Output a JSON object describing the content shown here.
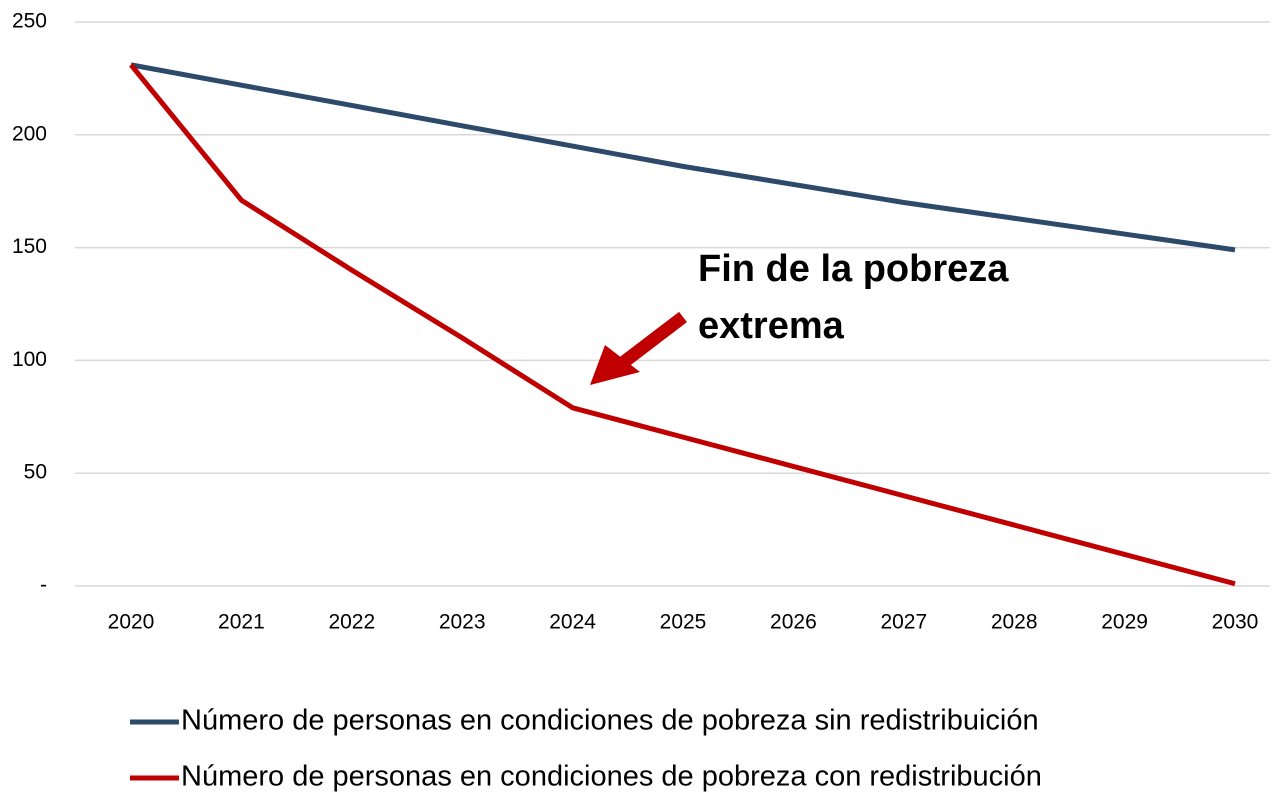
{
  "chart_data": {
    "type": "line",
    "categories": [
      "2020",
      "2021",
      "2022",
      "2023",
      "2024",
      "2025",
      "2026",
      "2027",
      "2028",
      "2029",
      "2030"
    ],
    "series": [
      {
        "name": "Número de personas en condiciones de pobreza sin redistribuición",
        "color": "#2e4a6b",
        "values": [
          231,
          222,
          213,
          204,
          195,
          186,
          178,
          170,
          163,
          156,
          149
        ]
      },
      {
        "name": "Número de personas en condiciones de pobreza con redistribución",
        "color": "#c00000",
        "values": [
          231,
          171,
          140,
          110,
          79,
          66,
          53,
          40,
          27,
          14,
          1
        ]
      }
    ],
    "ylim": [
      0,
      250
    ],
    "yticks": [
      {
        "value": 0,
        "label": "-"
      },
      50,
      100,
      150,
      200,
      250
    ],
    "grid": true,
    "annotation": [
      "Fin de la pobreza",
      "extrema"
    ]
  }
}
